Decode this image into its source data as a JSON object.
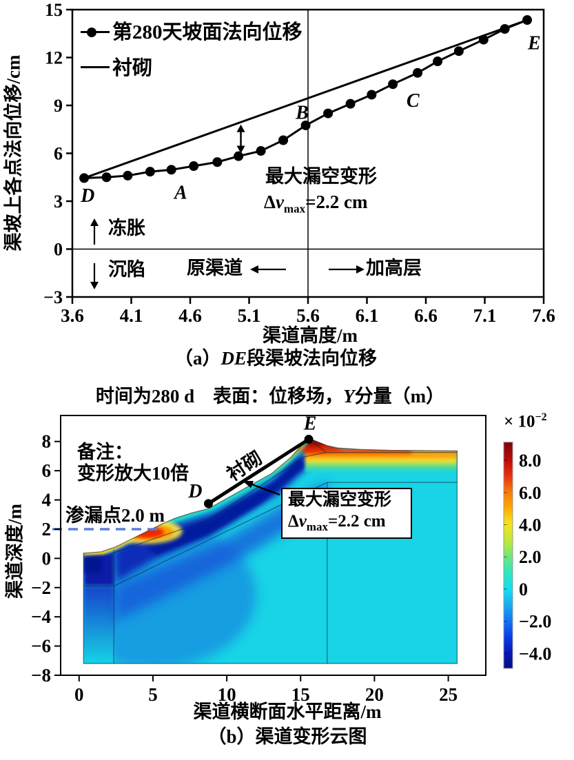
{
  "figure": {
    "background": "#ffffff",
    "ink": "#000000"
  },
  "chart_data": [
    {
      "id": "a",
      "type": "line",
      "caption_parts": {
        "pre": "（a）",
        "italic": "DE",
        "post": "段渠坡法向位移"
      },
      "xlabel": "渠道高度/m",
      "ylabel": "渠坡上各点法向位移/cm",
      "xlim": [
        3.6,
        7.6
      ],
      "ylim": [
        -3,
        15
      ],
      "xticks": {
        "values": [
          3.6,
          4.1,
          4.6,
          5.1,
          5.6,
          6.1,
          6.6,
          7.1,
          7.6
        ],
        "labels": [
          "3.6",
          "4.1",
          "4.6",
          "5.1",
          "5.6",
          "6.1",
          "6.6",
          "7.1",
          "7.6"
        ]
      },
      "yticks": {
        "values": [
          15,
          12,
          9,
          6,
          3,
          0,
          -3
        ],
        "labels": [
          "15",
          "12",
          "9",
          "6",
          "3",
          "0",
          "−3"
        ]
      },
      "series": [
        {
          "name": "第280天坡面法向位移",
          "marker": "circle",
          "x": [
            3.7,
            3.89,
            4.07,
            4.26,
            4.44,
            4.63,
            4.83,
            5.01,
            5.2,
            5.39,
            5.58,
            5.77,
            5.96,
            6.14,
            6.32,
            6.53,
            6.7,
            6.88,
            7.09,
            7.27,
            7.46
          ],
          "y": [
            4.45,
            4.5,
            4.6,
            4.85,
            4.97,
            5.2,
            5.45,
            5.82,
            6.15,
            6.82,
            7.75,
            8.5,
            9.1,
            9.67,
            10.33,
            11.04,
            11.76,
            12.4,
            13.12,
            13.79,
            14.35
          ]
        },
        {
          "name": "衬砌",
          "marker": "none",
          "x": [
            3.7,
            7.46
          ],
          "y": [
            4.45,
            14.35
          ]
        }
      ],
      "divider_x": 5.6,
      "baseline_y": 0,
      "gap_arrow": {
        "x": 5.03,
        "y_top": 7.8,
        "y_bottom": 6.0
      },
      "point_labels": [
        {
          "text": "D",
          "x": 3.73,
          "y": 3.35
        },
        {
          "text": "A",
          "x": 4.52,
          "y": 3.55
        },
        {
          "text": "B",
          "x": 5.55,
          "y": 8.55
        },
        {
          "text": "C",
          "x": 6.49,
          "y": 9.3
        },
        {
          "text": "E",
          "x": 7.52,
          "y": 12.9
        }
      ],
      "annotation": {
        "line1": "最大漏空变形",
        "formula": {
          "delta": "Δ",
          "var": "v",
          "sub": "max",
          "rest": "=2.2 cm"
        }
      },
      "zone_labels": {
        "frost": "冻胀",
        "settle": "沉陷",
        "left_zone": "原渠道",
        "right_zone": "加高层"
      }
    },
    {
      "id": "b",
      "type": "heatmap",
      "title_parts": {
        "pre": "时间为280 d　表面：位移场，",
        "italic": "Y",
        "post": "分量（m）"
      },
      "caption": "（b）渠道变形云图",
      "xlabel": "渠道横断面水平距离/m",
      "ylabel": "渠道深度/m",
      "xlim": [
        -1.25,
        27.54
      ],
      "ylim": [
        -8,
        9.78
      ],
      "xticks": {
        "values": [
          0,
          5,
          10,
          15,
          20,
          25
        ],
        "labels": [
          "0",
          "5",
          "10",
          "15",
          "20",
          "25"
        ]
      },
      "yticks": {
        "values": [
          8,
          6,
          4,
          2,
          0,
          -2,
          -4,
          -6,
          -8
        ],
        "labels": [
          "8",
          "6",
          "4",
          "2",
          "0",
          "−2",
          "−4",
          "−6",
          "−8"
        ]
      },
      "note": {
        "line1": "备注：",
        "line2": "变形放大10倍"
      },
      "leak": {
        "label": "渗漏点2.0 m",
        "y": 2.0,
        "x_end": 5.35,
        "color": "#5b7fd4"
      },
      "lining": {
        "label": "衬砌",
        "D": [
          8.76,
          3.75
        ],
        "E": [
          15.55,
          8.15
        ],
        "D_label": "D",
        "E_label": "E"
      },
      "annotation": {
        "line1": "最大漏空变形",
        "formula": {
          "delta": "Δ",
          "var": "v",
          "sub": "max",
          "rest": "=2.2 cm"
        }
      },
      "surface": [
        [
          0.3,
          0.35
        ],
        [
          1.5,
          0.45
        ],
        [
          2.5,
          0.8
        ],
        [
          3.2,
          1.15
        ],
        [
          4.5,
          1.8
        ],
        [
          5.5,
          2.3
        ],
        [
          6.5,
          2.75
        ],
        [
          7.6,
          3.1
        ],
        [
          8.8,
          3.42
        ],
        [
          10.0,
          4.1
        ],
        [
          11.5,
          4.95
        ],
        [
          13.0,
          5.78
        ],
        [
          14.3,
          6.88
        ],
        [
          15.2,
          7.88
        ],
        [
          15.6,
          8.2
        ],
        [
          16.1,
          8.0
        ],
        [
          16.8,
          7.72
        ],
        [
          17.5,
          7.56
        ],
        [
          19.0,
          7.46
        ],
        [
          21.0,
          7.4
        ],
        [
          25.6,
          7.36
        ]
      ],
      "domain_bottom": -7.2,
      "domain_x": [
        0.3,
        25.6
      ],
      "mesh_lines": [
        [
          [
            2.35,
            -7.2
          ],
          [
            2.35,
            0.6
          ]
        ],
        [
          [
            16.8,
            -7.2
          ],
          [
            16.8,
            5.2
          ]
        ],
        [
          [
            0.3,
            -1.9
          ],
          [
            2.35,
            -1.9
          ]
        ],
        [
          [
            2.35,
            -1.9
          ],
          [
            16.8,
            5.2
          ],
          [
            25.6,
            5.2
          ]
        ],
        [
          [
            2.1,
            0.3
          ],
          [
            8.8,
            2.65
          ],
          [
            15.25,
            6.95
          ],
          [
            16.7,
            7.25
          ],
          [
            25.6,
            7.25
          ]
        ],
        [
          [
            15.9,
            7.95
          ],
          [
            16.7,
            7.25
          ]
        ]
      ],
      "field_colors": {
        "base": "#19d3e6",
        "wash": "#1567dd",
        "midBand": "#1250d8",
        "slopeDark": "#0b28b6",
        "slopeCore": "#041c9e",
        "navyBox": "#0a1ca6",
        "navyBoxCore": "#061290",
        "bottomLeftTop": "#1243cc",
        "crest": "#e02000",
        "crestCore": "#930b00",
        "bandStops": [
          "#e82800",
          "#fb8200",
          "#f6e22c",
          "#55dc88",
          "#19d3e6"
        ],
        "farRightYellow": "#f6e22c",
        "slopeBand": "#2fe4b2",
        "segYellow": "#cfe83c",
        "segOrange": "#ff9800",
        "surfYellow": "#ffe83c",
        "surfOrange": "#ffab00",
        "leakFringe": "#ffe83c",
        "leakMid": "#ff9c00",
        "leakCore": "#f22800",
        "mesh": "rgba(16,42,60,0.6)",
        "outline": "rgba(40,40,40,0.65)"
      },
      "colorbar": {
        "exp_parts": {
          "base": "× 10",
          "exp": "−2"
        },
        "ticks": {
          "values": [
            8,
            6,
            4,
            2,
            0,
            -2,
            -4
          ],
          "labels": [
            "8.0",
            "6.0",
            "4.0",
            "2.0",
            "0",
            "−2.0",
            "−4.0"
          ]
        },
        "range_top": 9.13,
        "range_bottom": -4.93,
        "stops": [
          [
            0,
            "#7a0310"
          ],
          [
            0.08,
            "#c00b04"
          ],
          [
            0.15,
            "#e93110"
          ],
          [
            0.22,
            "#fa7a06"
          ],
          [
            0.29,
            "#ffa800"
          ],
          [
            0.36,
            "#f6e41e"
          ],
          [
            0.44,
            "#bce83a"
          ],
          [
            0.51,
            "#68e77e"
          ],
          [
            0.58,
            "#2ce7c2"
          ],
          [
            0.65,
            "#12dff2"
          ],
          [
            0.72,
            "#16abf2"
          ],
          [
            0.79,
            "#1472f8"
          ],
          [
            0.86,
            "#0a3cea"
          ],
          [
            0.93,
            "#0619b6"
          ],
          [
            1,
            "#050e88"
          ]
        ]
      }
    }
  ]
}
